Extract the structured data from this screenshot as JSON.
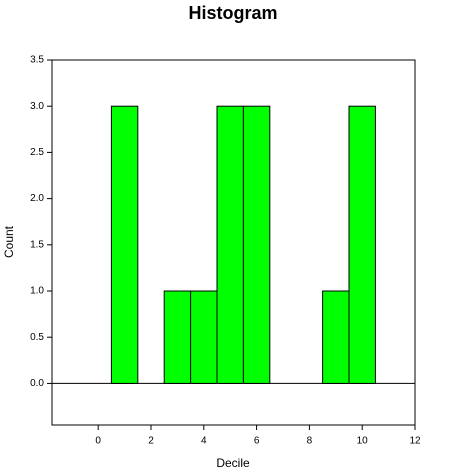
{
  "chart_data": {
    "type": "histogram",
    "title": "Histogram",
    "x_label": "Decile",
    "y_label": "Count",
    "bins": [
      0.5,
      1.5,
      2.5,
      3.5,
      4.5,
      5.5,
      6.5,
      7.5,
      8.5,
      9.5,
      10.5
    ],
    "values": [
      3,
      0,
      1,
      1,
      3,
      3,
      0,
      0,
      1,
      3
    ],
    "color": "#00ff00",
    "xlim": [
      -1.75,
      12
    ],
    "xticks": [
      0,
      2,
      4,
      6,
      8,
      10,
      12
    ],
    "ylim": [
      -0.45,
      3.5
    ],
    "yticks": [
      {
        "value": 0,
        "label": "0.0"
      },
      {
        "value": 0.5,
        "label": "0.5"
      },
      {
        "value": 1,
        "label": "1.0"
      },
      {
        "value": 1.5,
        "label": "1.5"
      },
      {
        "value": 2,
        "label": "2.0"
      },
      {
        "value": 2.5,
        "label": "2.5"
      },
      {
        "value": 3,
        "label": "3.0"
      },
      {
        "value": 3.5,
        "label": "3.5"
      }
    ]
  }
}
